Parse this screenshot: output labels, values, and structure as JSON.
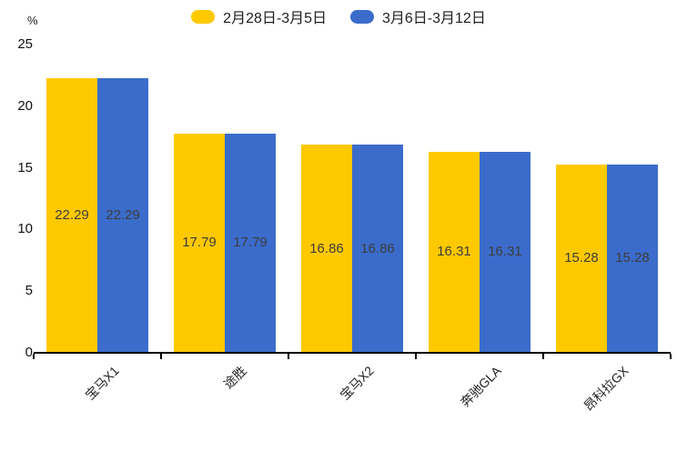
{
  "chart_data": {
    "type": "bar",
    "title": "",
    "categories": [
      "宝马X1",
      "途胜",
      "宝马X2",
      "奔驰GLA",
      "昂科拉GX"
    ],
    "series": [
      {
        "name": "2月28日-3月5日",
        "color": "#FFC900",
        "values": [
          22.29,
          17.79,
          16.86,
          16.31,
          15.28
        ]
      },
      {
        "name": "3月6日-3月12日",
        "color": "#3B6CCB",
        "values": [
          22.29,
          17.79,
          16.86,
          16.31,
          15.28
        ]
      }
    ],
    "xlabel": "",
    "ylabel": "%",
    "yticks": [
      0,
      5,
      10,
      15,
      20,
      25
    ],
    "ylim": [
      0,
      25
    ],
    "legend_position": "top",
    "grid": false,
    "value_labels": "inside-center",
    "value_label_format": "2-decimals",
    "xlabel_rotation": 45
  },
  "colors": {
    "axis": "#000000",
    "tick_label": "#111111",
    "value_label": "#3d3d3d",
    "legend_label": "#1f1f1f"
  }
}
